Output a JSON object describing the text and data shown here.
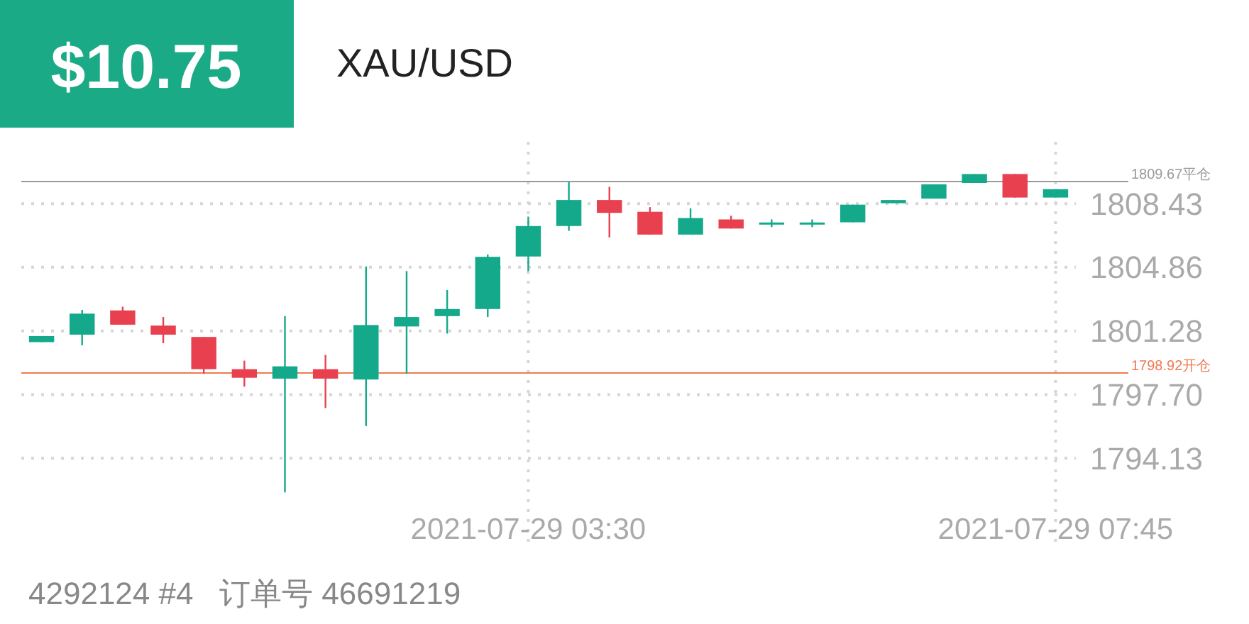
{
  "chart_data": {
    "type": "candlestick",
    "title": "$10.75",
    "subtitle": "XAU/USD",
    "categories": [
      null,
      null,
      null,
      null,
      null,
      null,
      null,
      null,
      null,
      null,
      null,
      null,
      "2021-07-29 03:30",
      null,
      null,
      null,
      null,
      null,
      null,
      null,
      null,
      null,
      null,
      null,
      null,
      "2021-07-29 07:45"
    ],
    "ohlc": [
      [
        1800.65,
        1800.99,
        1800.65,
        1800.99
      ],
      [
        1801.07,
        1802.46,
        1800.47,
        1802.25
      ],
      [
        1802.43,
        1802.64,
        1801.63,
        1801.63
      ],
      [
        1801.58,
        1802.06,
        1800.59,
        1801.07
      ],
      [
        1800.94,
        1800.94,
        1798.87,
        1799.13
      ],
      [
        1799.13,
        1799.61,
        1798.15,
        1798.65
      ],
      [
        1798.6,
        1802.11,
        1792.21,
        1799.29
      ],
      [
        1799.13,
        1799.93,
        1796.95,
        1798.6
      ],
      [
        1798.55,
        1804.9,
        1795.94,
        1801.61
      ],
      [
        1801.53,
        1804.64,
        1798.87,
        1802.06
      ],
      [
        1802.11,
        1803.58,
        1801.13,
        1802.51
      ],
      [
        1802.51,
        1805.57,
        1802.06,
        1805.44
      ],
      [
        1805.46,
        1807.7,
        1804.64,
        1807.17
      ],
      [
        1807.17,
        1809.64,
        1806.9,
        1808.63
      ],
      [
        1808.63,
        1809.37,
        1806.53,
        1807.91
      ],
      [
        1807.97,
        1808.23,
        1806.69,
        1806.69
      ],
      [
        1806.69,
        1808.17,
        1806.69,
        1807.62
      ],
      [
        1807.54,
        1807.75,
        1807.03,
        1807.03
      ],
      [
        1807.33,
        1807.54,
        1807.11,
        1807.37
      ],
      [
        1807.33,
        1807.54,
        1807.11,
        1807.37
      ],
      [
        1807.38,
        1808.37,
        1807.38,
        1808.37
      ],
      [
        1808.45,
        1808.63,
        1808.45,
        1808.63
      ],
      [
        1808.71,
        1809.51,
        1808.71,
        1809.51
      ],
      [
        1809.59,
        1810.09,
        1809.59,
        1810.09
      ],
      [
        1810.09,
        1810.09,
        1808.77,
        1808.77
      ],
      [
        1808.77,
        1809.24,
        1808.77,
        1809.24
      ]
    ],
    "colors": [
      "#14a98a",
      "#14a98a",
      "#e8404f",
      "#e8404f",
      "#e8404f",
      "#e8404f",
      "#14a98a",
      "#e8404f",
      "#14a98a",
      "#14a98a",
      "#14a98a",
      "#14a98a",
      "#14a98a",
      "#14a98a",
      "#e8404f",
      "#e8404f",
      "#14a98a",
      "#e8404f",
      "#14a98a",
      "#14a98a",
      "#14a98a",
      "#14a98a",
      "#14a98a",
      "#14a98a",
      "#e8404f",
      "#14a98a"
    ],
    "ylim": [
      1789.2,
      1811.9
    ],
    "yticks": [
      1794.13,
      {
        "value": 1797.7,
        "label": "1797.70"
      },
      1801.28,
      1804.86,
      1808.43
    ],
    "grid": true,
    "ref_lines": [
      {
        "axis": "y",
        "value": 1809.67,
        "label": "1809.67平仓",
        "color": "#999999"
      },
      {
        "axis": "y",
        "value": 1798.92,
        "label": "1798.92开仓",
        "color": "#f07a50"
      }
    ],
    "annotations": [
      "4292124 #4   订单号 46691219"
    ]
  }
}
